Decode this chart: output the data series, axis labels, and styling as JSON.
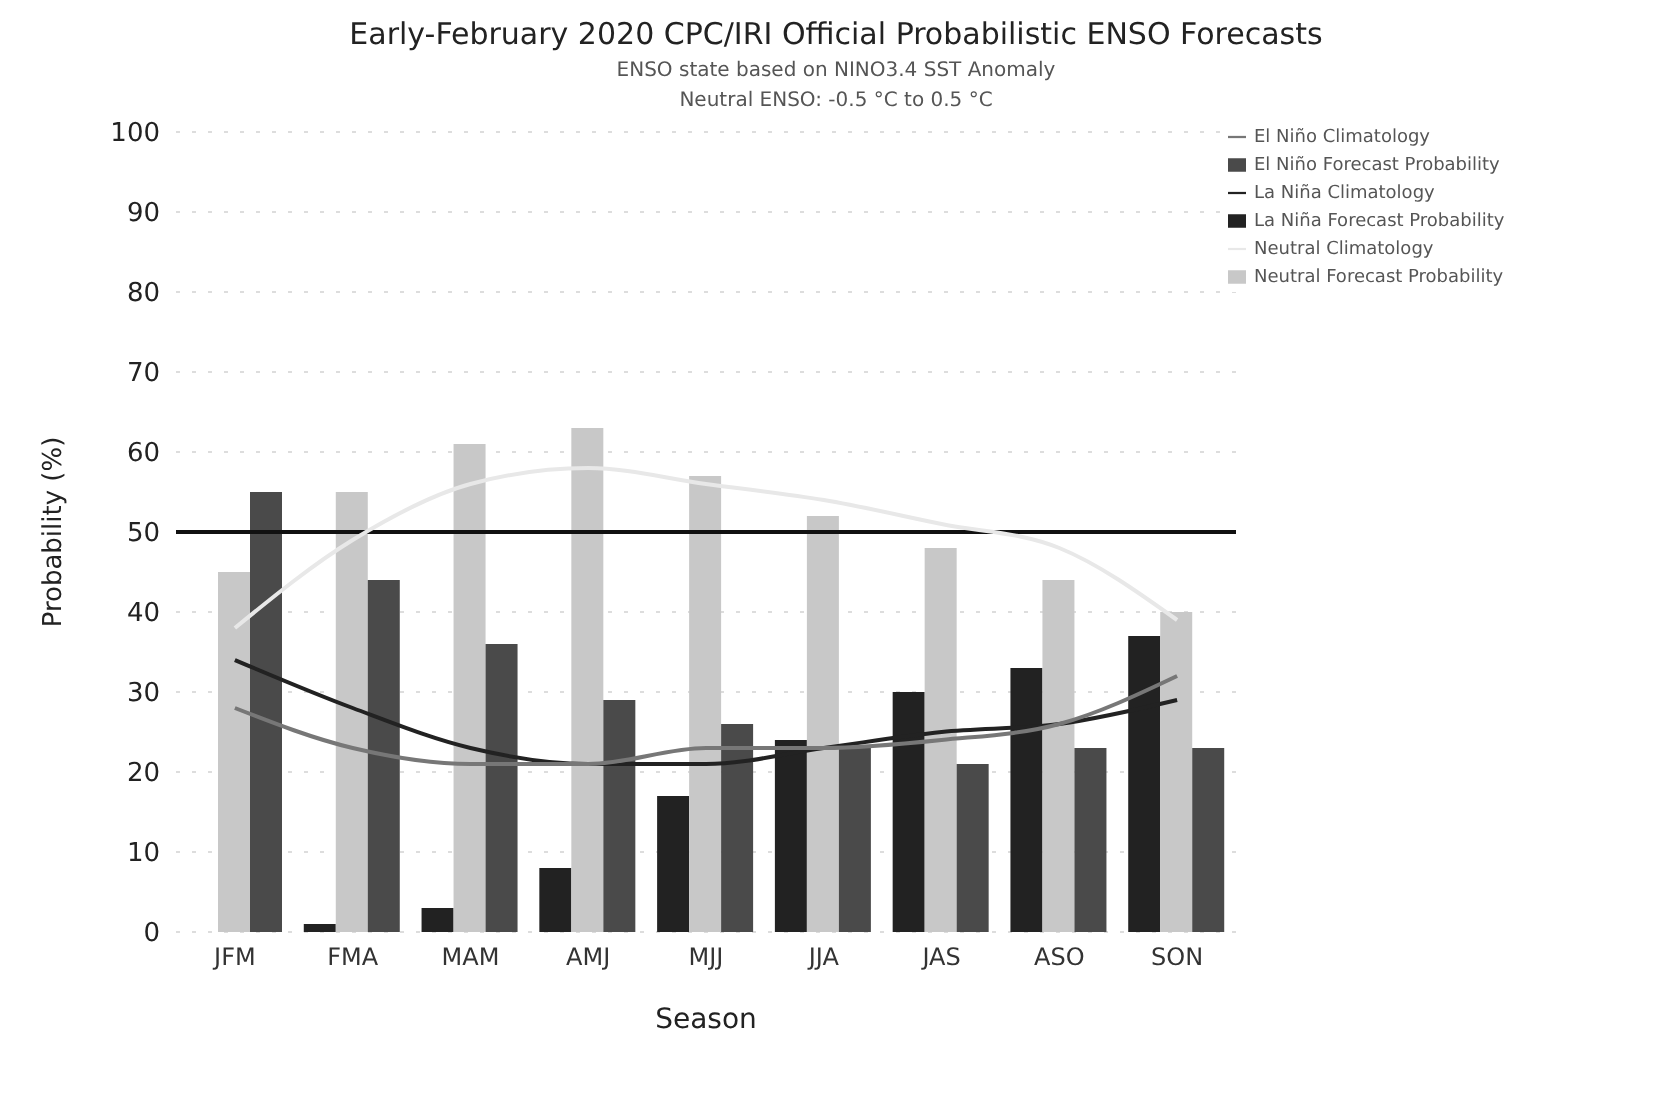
{
  "chart_data": {
    "type": "bar",
    "title": "Early-February 2020 CPC/IRI Official Probabilistic ENSO Forecasts",
    "subtitle": "ENSO state based on NINO3.4 SST Anomaly\nNeutral ENSO: -0.5 °C to 0.5 °C",
    "xlabel": "Season",
    "ylabel": "Probability (%)",
    "categories": [
      "JFM",
      "FMA",
      "MAM",
      "AMJ",
      "MJJ",
      "JJA",
      "JAS",
      "ASO",
      "SON"
    ],
    "series": [
      {
        "name": "La Niña Forecast Probability",
        "color": "#222222",
        "values": [
          0,
          1,
          3,
          8,
          17,
          24,
          30,
          33,
          37
        ]
      },
      {
        "name": "Neutral Forecast Probability",
        "color": "#c8c8c8",
        "values": [
          45,
          55,
          61,
          63,
          57,
          52,
          48,
          44,
          40
        ]
      },
      {
        "name": "El Niño Forecast Probability",
        "color": "#4a4a4a",
        "values": [
          55,
          44,
          36,
          29,
          26,
          23,
          21,
          23,
          23
        ]
      },
      {
        "name": "La Niña Climatology",
        "type": "line",
        "color": "#222222",
        "values": [
          34,
          28,
          23,
          21,
          21,
          23,
          25,
          26,
          29
        ]
      },
      {
        "name": "Neutral Climatology",
        "type": "line",
        "color": "#e8e8e8",
        "values": [
          38,
          49,
          56,
          58,
          56,
          54,
          51,
          48,
          39
        ]
      },
      {
        "name": "El Niño Climatology",
        "type": "line",
        "color": "#777777",
        "values": [
          28,
          23,
          21,
          21,
          23,
          23,
          24,
          26,
          32
        ]
      }
    ],
    "ylim": [
      0,
      100
    ],
    "yticks": [
      0,
      10,
      20,
      30,
      40,
      50,
      60,
      70,
      80,
      90,
      100
    ],
    "ref_lines": [
      {
        "axis": "y",
        "value": 50,
        "color": "#111111"
      }
    ],
    "grid": "y",
    "legend": "top right",
    "marker": "none",
    "line_style": "solid"
  }
}
